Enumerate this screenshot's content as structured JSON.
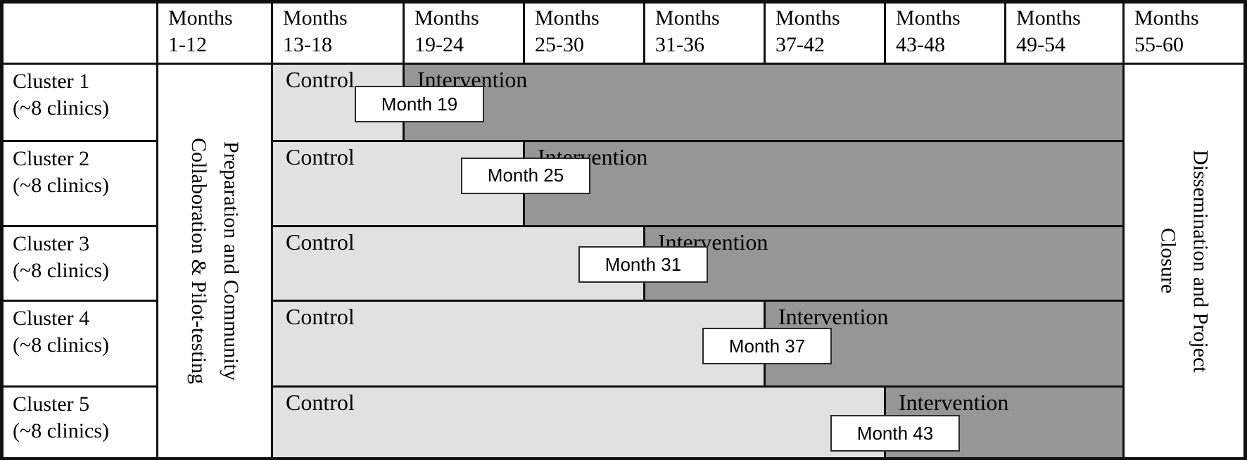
{
  "header": {
    "columns": [
      {
        "title": "Months",
        "range": "1-12"
      },
      {
        "title": "Months",
        "range": "13-18"
      },
      {
        "title": "Months",
        "range": "19-24"
      },
      {
        "title": "Months",
        "range": "25-30"
      },
      {
        "title": "Months",
        "range": "31-36"
      },
      {
        "title": "Months",
        "range": "37-42"
      },
      {
        "title": "Months",
        "range": "43-48"
      },
      {
        "title": "Months",
        "range": "49-54"
      },
      {
        "title": "Months",
        "range": "55-60"
      }
    ]
  },
  "clusters": [
    {
      "name": "Cluster 1",
      "size": "(~8 clinics)"
    },
    {
      "name": "Cluster 2",
      "size": "(~8 clinics)"
    },
    {
      "name": "Cluster 3",
      "size": "(~8 clinics)"
    },
    {
      "name": "Cluster 4",
      "size": "(~8 clinics)"
    },
    {
      "name": "Cluster 5",
      "size": "(~8 clinics)"
    }
  ],
  "rows": [
    {
      "control_label": "Control",
      "intervention_label": "Intervention",
      "callout_label": "Month 19",
      "intervention_start_month": 19
    },
    {
      "control_label": "Control",
      "intervention_label": "Intervention",
      "callout_label": "Month 25",
      "intervention_start_month": 25
    },
    {
      "control_label": "Control",
      "intervention_label": "Intervention",
      "callout_label": "Month 31",
      "intervention_start_month": 31
    },
    {
      "control_label": "Control",
      "intervention_label": "Intervention",
      "callout_label": "Month 37",
      "intervention_start_month": 37
    },
    {
      "control_label": "Control",
      "intervention_label": "Intervention",
      "callout_label": "Month 43",
      "intervention_start_month": 43
    }
  ],
  "phases": {
    "preparation_line1": "Preparation and Community",
    "preparation_line2": "Collaboration & Pilot-testing",
    "dissemination_line1": "Dissemination and Project",
    "dissemination_line2": "Closure"
  },
  "colors": {
    "control_fill": "#e1e1e1",
    "intervention_fill": "#969696",
    "grid_line": "#101010",
    "callout_fill": "#ffffff",
    "callout_border": "#2a2a2a",
    "background": "#ffffff"
  }
}
